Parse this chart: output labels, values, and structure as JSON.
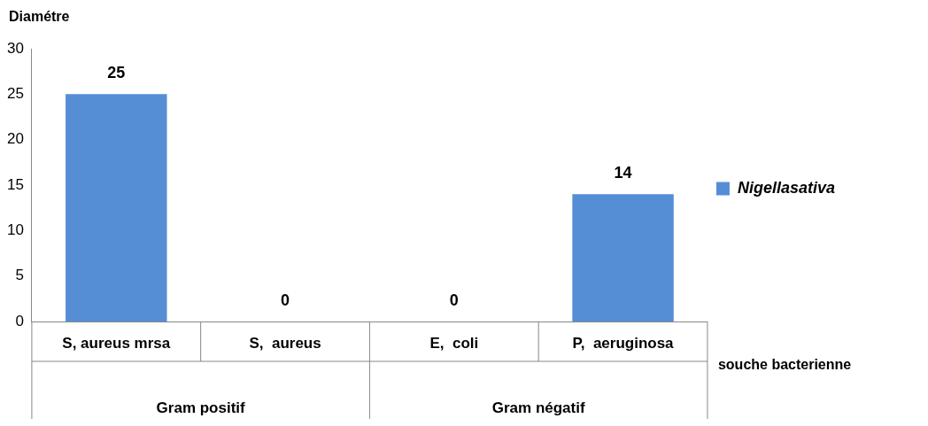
{
  "chart_data": {
    "type": "bar",
    "ylabel": "Diamétre",
    "xlabel": "souche bacterienne",
    "categories": [
      "S, aureus mrsa",
      "S,  aureus",
      "E,  coli",
      "P,  aeruginosa"
    ],
    "series": [
      {
        "name": "Nigellasativa",
        "color": "#558ed5",
        "values": [
          25,
          0,
          0,
          14
        ]
      }
    ],
    "ylim": [
      0,
      30
    ],
    "yticks": [
      0,
      5,
      10,
      15,
      20,
      25,
      30
    ],
    "data_labels": true,
    "legend": "right",
    "annotations": [
      "Gram positif",
      "Gram négatif"
    ]
  }
}
